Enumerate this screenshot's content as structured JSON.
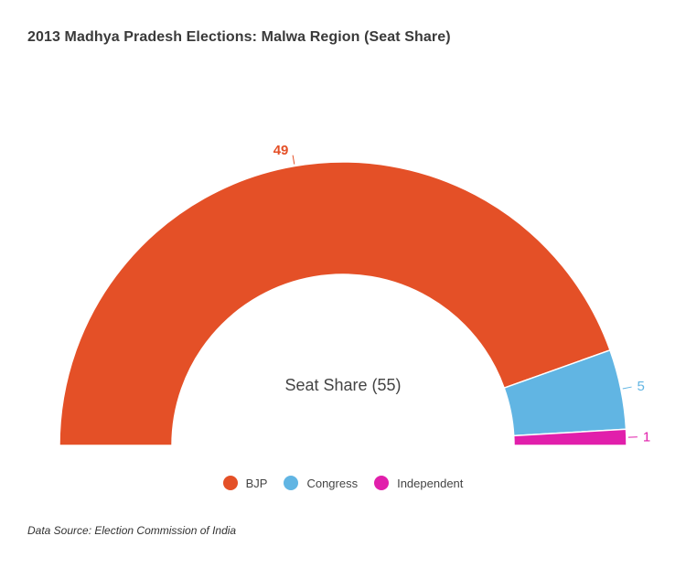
{
  "title": "2013 Madhya Pradesh Elections: Malwa Region (Seat Share)",
  "center_label": "Seat Share (55)",
  "source": "Data Source: Election Commission of India",
  "legend": [
    {
      "label": "BJP",
      "color": "#e45027"
    },
    {
      "label": "Congress",
      "color": "#61b5e3"
    },
    {
      "label": "Independent",
      "color": "#e11fab"
    }
  ],
  "chart_data": {
    "type": "pie",
    "subtype": "semi-donut",
    "title": "2013 Madhya Pradesh Elections: Malwa Region (Seat Share)",
    "center_text": "Seat Share (55)",
    "total": 55,
    "categories": [
      "BJP",
      "Congress",
      "Independent"
    ],
    "values": [
      49,
      5,
      1
    ],
    "colors": [
      "#e45027",
      "#61b5e3",
      "#e11fab"
    ],
    "data_labels": [
      "49",
      "5",
      "1"
    ],
    "legend_position": "bottom",
    "source": "Data Source: Election Commission of India"
  }
}
